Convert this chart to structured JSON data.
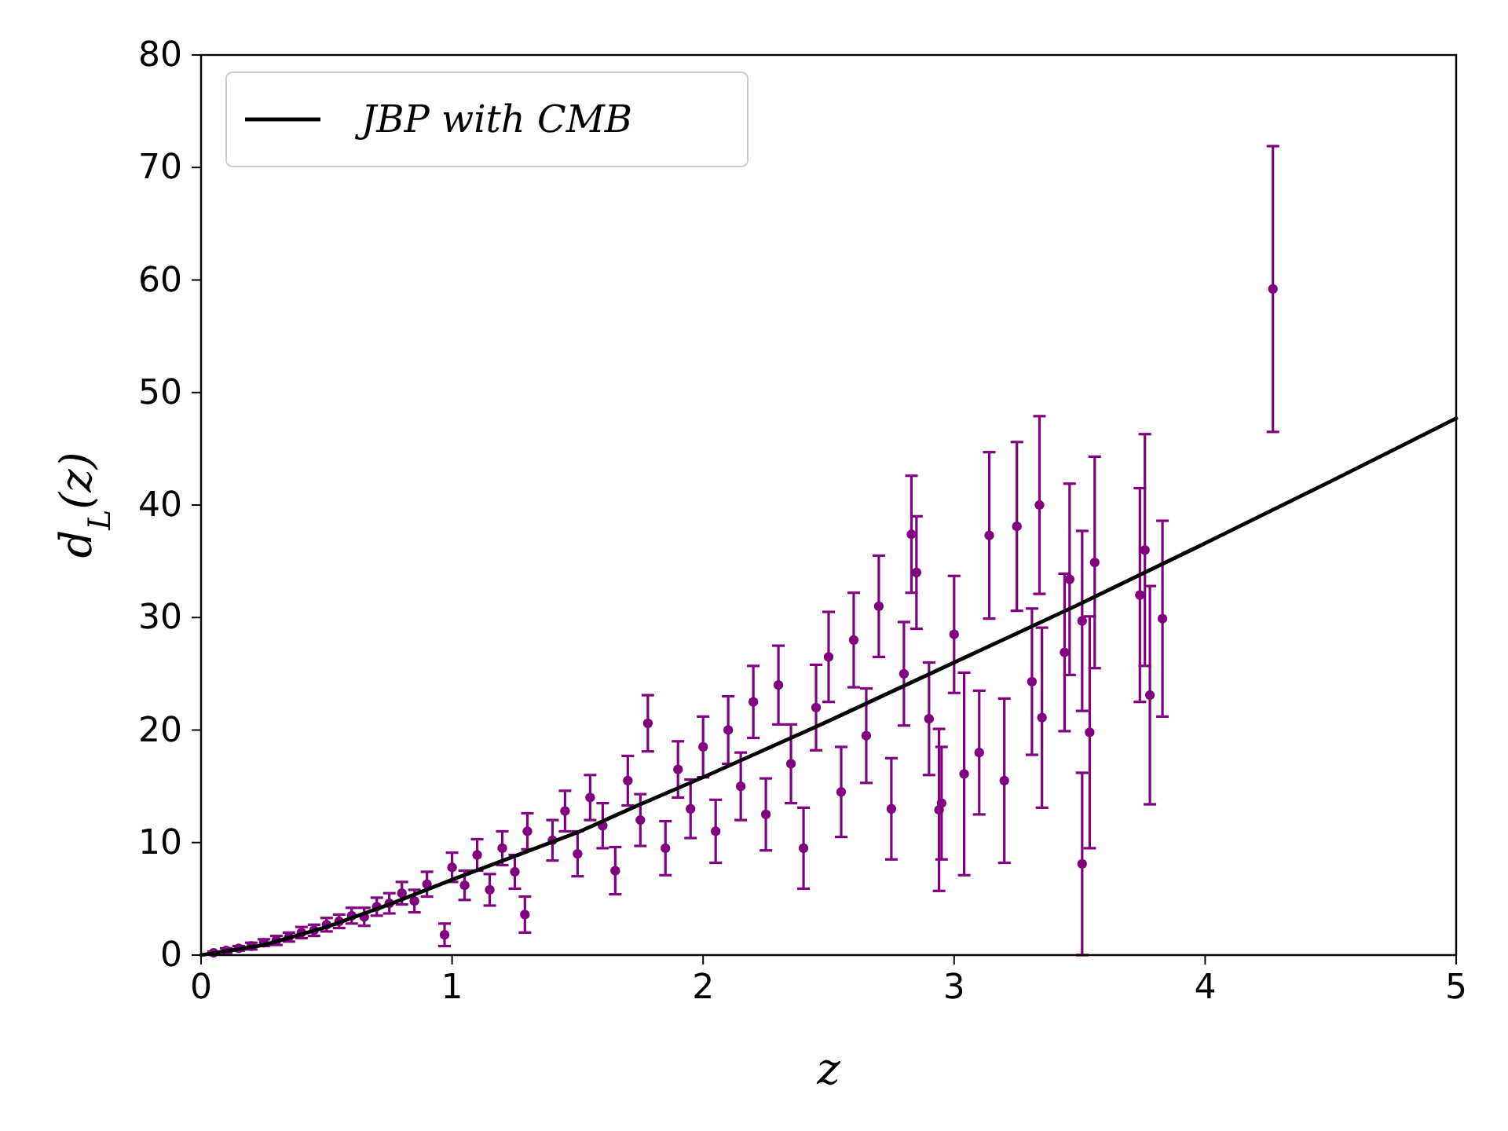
{
  "chart_data": {
    "type": "scatter",
    "xlabel": "z",
    "ylabel": "d$_{L}$(z)",
    "xlim": [
      0,
      5
    ],
    "ylim": [
      0,
      80
    ],
    "xticks": [
      0,
      1,
      2,
      3,
      4,
      5
    ],
    "yticks": [
      0,
      10,
      20,
      30,
      40,
      50,
      60,
      70,
      80
    ],
    "legend": "top left",
    "series": [
      {
        "color": "#800080",
        "marker": "circle",
        "x": [
          0.05,
          0.1,
          0.15,
          0.2,
          0.25,
          0.3,
          0.35,
          0.4,
          0.45,
          0.5,
          0.55,
          0.6,
          0.65,
          0.7,
          0.75,
          0.8,
          0.85,
          0.9,
          0.97,
          1.0,
          1.05,
          1.1,
          1.15,
          1.2,
          1.25,
          1.29,
          1.3,
          1.4,
          1.45,
          1.5,
          1.55,
          1.6,
          1.65,
          1.7,
          1.75,
          1.78,
          1.85,
          1.9,
          1.95,
          2.0,
          2.05,
          2.1,
          2.15,
          2.2,
          2.25,
          2.3,
          2.35,
          2.4,
          2.45,
          2.5,
          2.55,
          2.6,
          2.65,
          2.7,
          2.75,
          2.8,
          2.83,
          2.85,
          2.9,
          2.94,
          2.95,
          3.0,
          3.04,
          3.1,
          3.14,
          3.2,
          3.25,
          3.31,
          3.34,
          3.35,
          3.44,
          3.46,
          3.51,
          3.51,
          3.54,
          3.56,
          3.74,
          3.76,
          3.78,
          3.83,
          4.27
        ],
        "values": [
          0.2,
          0.4,
          0.6,
          0.8,
          1.1,
          1.3,
          1.6,
          2.0,
          2.2,
          2.7,
          3.0,
          3.5,
          3.4,
          4.3,
          4.6,
          5.5,
          4.8,
          6.3,
          1.8,
          7.8,
          6.2,
          8.9,
          5.8,
          9.5,
          7.4,
          3.6,
          11.0,
          10.2,
          12.8,
          9.0,
          14.0,
          11.5,
          7.5,
          15.5,
          12.0,
          20.6,
          9.5,
          16.5,
          13.0,
          18.5,
          11.0,
          20.0,
          15.0,
          22.5,
          12.5,
          24.0,
          17.0,
          9.5,
          22.0,
          26.5,
          14.5,
          28.0,
          19.5,
          31.0,
          13.0,
          25.0,
          37.4,
          34.0,
          21.0,
          12.9,
          13.5,
          28.5,
          16.1,
          18.0,
          37.3,
          15.5,
          38.1,
          24.3,
          40.0,
          21.1,
          26.9,
          33.4,
          8.1,
          29.7,
          19.8,
          34.9,
          32.0,
          36.0,
          23.1,
          29.9,
          59.2
        ],
        "errors": [
          0.1,
          0.2,
          0.2,
          0.3,
          0.3,
          0.4,
          0.4,
          0.5,
          0.5,
          0.6,
          0.6,
          0.7,
          0.8,
          0.8,
          0.9,
          1.0,
          1.0,
          1.1,
          1.0,
          1.3,
          1.3,
          1.4,
          1.4,
          1.5,
          1.5,
          1.6,
          1.6,
          1.8,
          1.8,
          2.0,
          2.0,
          2.0,
          2.1,
          2.2,
          2.3,
          2.5,
          2.4,
          2.5,
          2.6,
          2.7,
          2.8,
          3.0,
          3.0,
          3.2,
          3.2,
          3.5,
          3.5,
          3.6,
          3.8,
          4.0,
          4.0,
          4.2,
          4.2,
          4.5,
          4.5,
          4.6,
          5.2,
          5.0,
          5.0,
          7.2,
          5.0,
          5.2,
          9.0,
          5.5,
          7.4,
          7.3,
          7.5,
          6.5,
          7.9,
          8.0,
          7.0,
          8.5,
          8.1,
          8.0,
          10.3,
          9.4,
          9.5,
          10.3,
          9.7,
          8.7,
          12.7
        ]
      },
      {
        "type": "line",
        "name": "JBP with CMB",
        "color": "#000000",
        "x": [
          0,
          0.25,
          0.5,
          0.75,
          1.0,
          1.25,
          1.5,
          1.75,
          2.0,
          2.5,
          3.0,
          3.5,
          4.0,
          4.5,
          5.0
        ],
        "values": [
          0,
          0.9,
          2.5,
          4.5,
          6.7,
          8.8,
          10.9,
          13.4,
          15.8,
          20.8,
          26.0,
          31.2,
          36.6,
          42.1,
          47.7
        ]
      }
    ]
  }
}
